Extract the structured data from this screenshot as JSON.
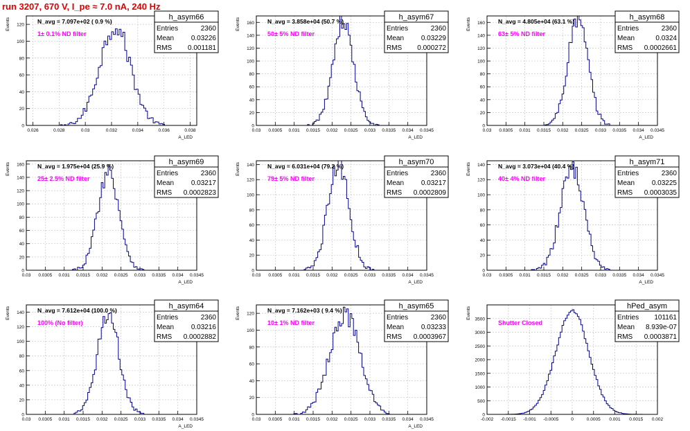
{
  "page": {
    "title": "run 3207,   670 V, I_pe ≈ 7.0 nA, 240 Hz"
  },
  "colors": {
    "histogram": "#00008b",
    "annotation": "#ff00ff",
    "title": "#e00000",
    "grid": "#c8c8c8"
  },
  "stat_labels": {
    "entries": "Entries",
    "mean": "Mean",
    "rms": "RMS"
  },
  "chart_data": [
    {
      "type": "histogram",
      "name": "h_asym66",
      "ylabel": "Events",
      "xlabel": "A_LED",
      "xlim": [
        0.0255,
        0.0385
      ],
      "ylim": [
        0,
        130
      ],
      "xticks": [
        0.026,
        0.028,
        0.03,
        0.032,
        0.034,
        0.036,
        0.038
      ],
      "xticklabels": [
        "0.026",
        "0.028",
        "0.03",
        "0.032",
        "0.034",
        "0.036",
        "0.038"
      ],
      "yticks": [
        0,
        20,
        40,
        60,
        80,
        100,
        120
      ],
      "navg": "N_avg = 7.097e+02 ( 0.9 %)",
      "filter": "1± 0.1% ND filter",
      "entries": "2360",
      "mean": "0.03226",
      "rms": "0.001181",
      "center": 0.03226,
      "sigma": 0.00118,
      "peak": 118,
      "nbins": 90
    },
    {
      "type": "histogram",
      "name": "h_asym67",
      "ylabel": "Events",
      "xlabel": "A_LED",
      "xlim": [
        0.03,
        0.0345
      ],
      "ylim": [
        0,
        170
      ],
      "xticks": [
        0.03,
        0.0305,
        0.031,
        0.0315,
        0.032,
        0.0325,
        0.033,
        0.0335,
        0.034,
        0.0345
      ],
      "xticklabels": [
        "0.03",
        "0.0305",
        "0.031",
        "0.0315",
        "0.032",
        "0.0325",
        "0.033",
        "0.0335",
        "0.034",
        "0.0345"
      ],
      "yticks": [
        0,
        20,
        40,
        60,
        80,
        100,
        120,
        140,
        160
      ],
      "navg": "N_avg = 3.858e+04 (50.7 %)",
      "filter": "50± 5% ND filter",
      "entries": "2360",
      "mean": "0.03229",
      "rms": "0.000272",
      "center": 0.03229,
      "sigma": 0.000272,
      "peak": 162,
      "nbins": 100
    },
    {
      "type": "histogram",
      "name": "h_asym68",
      "ylabel": "Events",
      "xlabel": "A_LED",
      "xlim": [
        0.03,
        0.0345
      ],
      "ylim": [
        0,
        170
      ],
      "xticks": [
        0.03,
        0.0305,
        0.031,
        0.0315,
        0.032,
        0.0325,
        0.033,
        0.0335,
        0.034,
        0.0345
      ],
      "xticklabels": [
        "0.03",
        "0.0305",
        "0.031",
        "0.0315",
        "0.032",
        "0.0325",
        "0.033",
        "0.0335",
        "0.034",
        "0.0345"
      ],
      "yticks": [
        0,
        20,
        40,
        60,
        80,
        100,
        120,
        140,
        160
      ],
      "navg": "N_avg = 4.805e+04 (63.1 %)",
      "filter": "63± 5% ND filter",
      "entries": "2360",
      "mean": "0.0324",
      "rms": "0.0002661",
      "center": 0.0324,
      "sigma": 0.000266,
      "peak": 165,
      "nbins": 100
    },
    {
      "type": "histogram",
      "name": "h_asym69",
      "ylabel": "Events",
      "xlabel": "A_LED",
      "xlim": [
        0.03,
        0.0345
      ],
      "ylim": [
        0,
        165
      ],
      "xticks": [
        0.03,
        0.0305,
        0.031,
        0.0315,
        0.032,
        0.0325,
        0.033,
        0.0335,
        0.034,
        0.0345
      ],
      "xticklabels": [
        "0.03",
        "0.0305",
        "0.031",
        "0.0315",
        "0.032",
        "0.0325",
        "0.033",
        "0.0335",
        "0.034",
        "0.0345"
      ],
      "yticks": [
        0,
        20,
        40,
        60,
        80,
        100,
        120,
        140,
        160
      ],
      "navg": "N_avg = 1.975e+04 (25.9 %)",
      "filter": "25± 2.5% ND filter",
      "entries": "2360",
      "mean": "0.03217",
      "rms": "0.0002823",
      "center": 0.03217,
      "sigma": 0.000282,
      "peak": 150,
      "nbins": 100
    },
    {
      "type": "histogram",
      "name": "h_asym70",
      "ylabel": "Events",
      "xlabel": "A_LED",
      "xlim": [
        0.03,
        0.0345
      ],
      "ylim": [
        0,
        145
      ],
      "xticks": [
        0.03,
        0.0305,
        0.031,
        0.0315,
        0.032,
        0.0325,
        0.033,
        0.0335,
        0.034,
        0.0345
      ],
      "xticklabels": [
        "0.03",
        "0.0305",
        "0.031",
        "0.0315",
        "0.032",
        "0.0325",
        "0.033",
        "0.0335",
        "0.034",
        "0.0345"
      ],
      "yticks": [
        0,
        20,
        40,
        60,
        80,
        100,
        120,
        140
      ],
      "navg": "N_avg = 6.031e+04 (79.2 %)",
      "filter": "79± 5% ND filter",
      "entries": "2360",
      "mean": "0.03217",
      "rms": "0.0002809",
      "center": 0.03217,
      "sigma": 0.000281,
      "peak": 140,
      "nbins": 100
    },
    {
      "type": "histogram",
      "name": "h_asym71",
      "ylabel": "Events",
      "xlabel": "A_LED",
      "xlim": [
        0.03,
        0.0345
      ],
      "ylim": [
        0,
        145
      ],
      "xticks": [
        0.03,
        0.0305,
        0.031,
        0.0315,
        0.032,
        0.0325,
        0.033,
        0.0335,
        0.034,
        0.0345
      ],
      "xticklabels": [
        "0.03",
        "0.0305",
        "0.031",
        "0.0315",
        "0.032",
        "0.0325",
        "0.033",
        "0.0335",
        "0.034",
        "0.0345"
      ],
      "yticks": [
        0,
        20,
        40,
        60,
        80,
        100,
        120,
        140
      ],
      "navg": "N_avg = 3.073e+04 (40.4 %)",
      "filter": "40± 4% ND filter",
      "entries": "2360",
      "mean": "0.03225",
      "rms": "0.0003035",
      "center": 0.03225,
      "sigma": 0.000304,
      "peak": 138,
      "nbins": 100
    },
    {
      "type": "histogram",
      "name": "h_asym64",
      "ylabel": "Events",
      "xlabel": "A_LED",
      "xlim": [
        0.03,
        0.0345
      ],
      "ylim": [
        0,
        150
      ],
      "xticks": [
        0.03,
        0.0305,
        0.031,
        0.0315,
        0.032,
        0.0325,
        0.033,
        0.0335,
        0.034,
        0.0345
      ],
      "xticklabels": [
        "0.03",
        "0.0305",
        "0.031",
        "0.0315",
        "0.032",
        "0.0325",
        "0.033",
        "0.0335",
        "0.034",
        "0.0345"
      ],
      "yticks": [
        0,
        20,
        40,
        60,
        80,
        100,
        120,
        140
      ],
      "navg": "N_avg = 7.612e+04 (100.0 %)",
      "filter": "100% (No filter)",
      "entries": "2360",
      "mean": "0.03216",
      "rms": "0.0002882",
      "center": 0.03216,
      "sigma": 0.000288,
      "peak": 138,
      "nbins": 100
    },
    {
      "type": "histogram",
      "name": "h_asym65",
      "ylabel": "Events",
      "xlabel": "A_LED",
      "xlim": [
        0.03,
        0.0345
      ],
      "ylim": [
        0,
        130
      ],
      "xticks": [
        0.03,
        0.0305,
        0.031,
        0.0315,
        0.032,
        0.0325,
        0.033,
        0.0335,
        0.034,
        0.0345
      ],
      "xticklabels": [
        "0.03",
        "0.0305",
        "0.031",
        "0.0315",
        "0.032",
        "0.0325",
        "0.033",
        "0.0335",
        "0.034",
        "0.0345"
      ],
      "yticks": [
        0,
        20,
        40,
        60,
        80,
        100,
        120
      ],
      "navg": "N_avg = 7.162e+03 ( 9.4 %)",
      "filter": "10± 1% ND filter",
      "entries": "2360",
      "mean": "0.03233",
      "rms": "0.0003967",
      "center": 0.03233,
      "sigma": 0.000397,
      "peak": 120,
      "nbins": 100
    },
    {
      "type": "histogram",
      "name": "hPed_asym",
      "ylabel": "Events",
      "xlabel": "",
      "xlim": [
        -0.002,
        0.002
      ],
      "ylim": [
        0,
        4000
      ],
      "xticks": [
        -0.002,
        -0.0015,
        -0.001,
        -0.0005,
        0,
        0.0005,
        0.001,
        0.0015,
        0.002
      ],
      "xticklabels": [
        "-0.002",
        "-0.0015",
        "-0.001",
        "-0.0005",
        "0",
        "0.0005",
        "0.001",
        "0.0015",
        "0.002"
      ],
      "yticks": [
        0,
        500,
        1000,
        1500,
        2000,
        2500,
        3000,
        3500
      ],
      "navg": "",
      "filter": "Shutter Closed",
      "entries": "101161",
      "mean": "8.939e-07",
      "rms": "0.0003871",
      "center": 0.0,
      "sigma": 0.000387,
      "peak": 3800,
      "nbins": 100
    }
  ]
}
